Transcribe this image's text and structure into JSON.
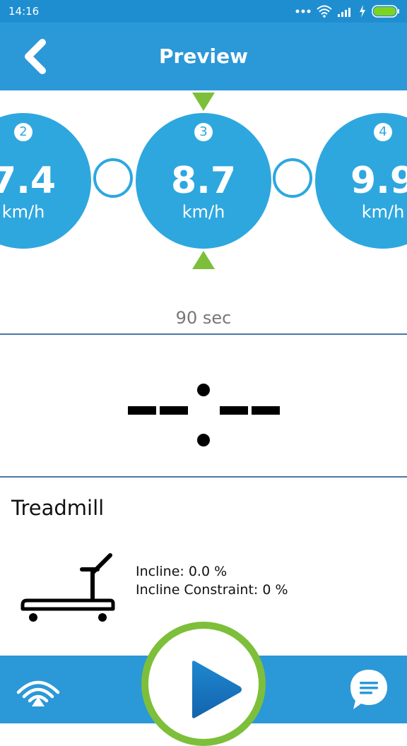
{
  "status_bar": {
    "time": "14:16",
    "icons": [
      "more-dots-icon",
      "wifi-icon",
      "signal-icon",
      "charging-icon",
      "battery-icon"
    ]
  },
  "header": {
    "title": "Preview",
    "back_icon": "chevron-left-icon"
  },
  "stages": [
    {
      "number": "2",
      "speed": "7.4",
      "unit": "km/h"
    },
    {
      "number": "3",
      "speed": "8.7",
      "unit": "km/h"
    },
    {
      "number": "4",
      "speed": "9.9",
      "unit": "km/h"
    }
  ],
  "current_stage": {
    "duration": "90 sec"
  },
  "timer": {
    "display": "--:--"
  },
  "equipment": {
    "name": "Treadmill",
    "incline_label": "Incline: 0.0 %",
    "incline_constraint_label": "Incline Constraint: 0 %",
    "icon": "treadmill-icon"
  },
  "bottom_bar": {
    "left_icon": "wifi-broadcast-icon",
    "center_icon": "play-icon",
    "right_icon": "chat-icon"
  },
  "colors": {
    "primary": "#2b98d8",
    "status_bar": "#1f8ed0",
    "stage_circle": "#2ea7df",
    "accent_green": "#7dbf3a",
    "divider": "#4b77a8"
  }
}
